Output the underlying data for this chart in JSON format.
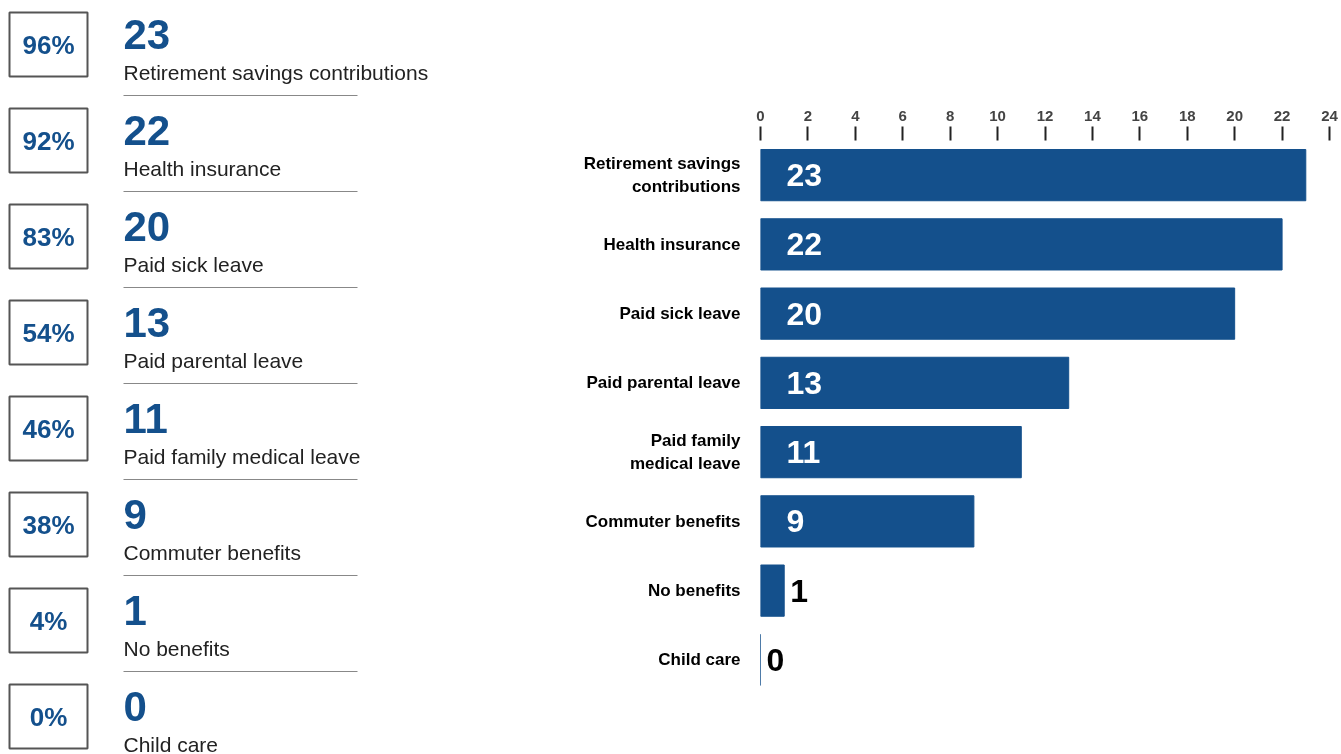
{
  "chart_data": [
    {
      "type": "other",
      "annotations": [
        "96%",
        "23",
        "Retirement savings contributions",
        "92%",
        "22",
        "Health insurance",
        "83%",
        "20",
        "Paid sick leave",
        "54%",
        "13",
        "Paid parental leave",
        "46%",
        "11",
        "Paid family medical leave",
        "38%",
        "9",
        "Commuter benefits",
        "4%",
        "1",
        "No benefits",
        "0%",
        "0",
        "Child care"
      ]
    },
    {
      "type": "bar",
      "orientation": "horizontal",
      "categories": [
        "Retirement savings contributions",
        "Health insurance",
        "Paid sick leave",
        "Paid parental leave",
        "Paid family medical leave",
        "Commuter benefits",
        "No benefits",
        "Child care"
      ],
      "values": [
        23,
        22,
        20,
        13,
        11,
        9,
        1,
        0
      ],
      "color": "#14508c",
      "xlim": [
        0,
        24
      ],
      "xticks": [
        0,
        2,
        4,
        6,
        8,
        10,
        12,
        14,
        16,
        18,
        20,
        22,
        24
      ],
      "data_labels": true,
      "grid": false
    }
  ]
}
